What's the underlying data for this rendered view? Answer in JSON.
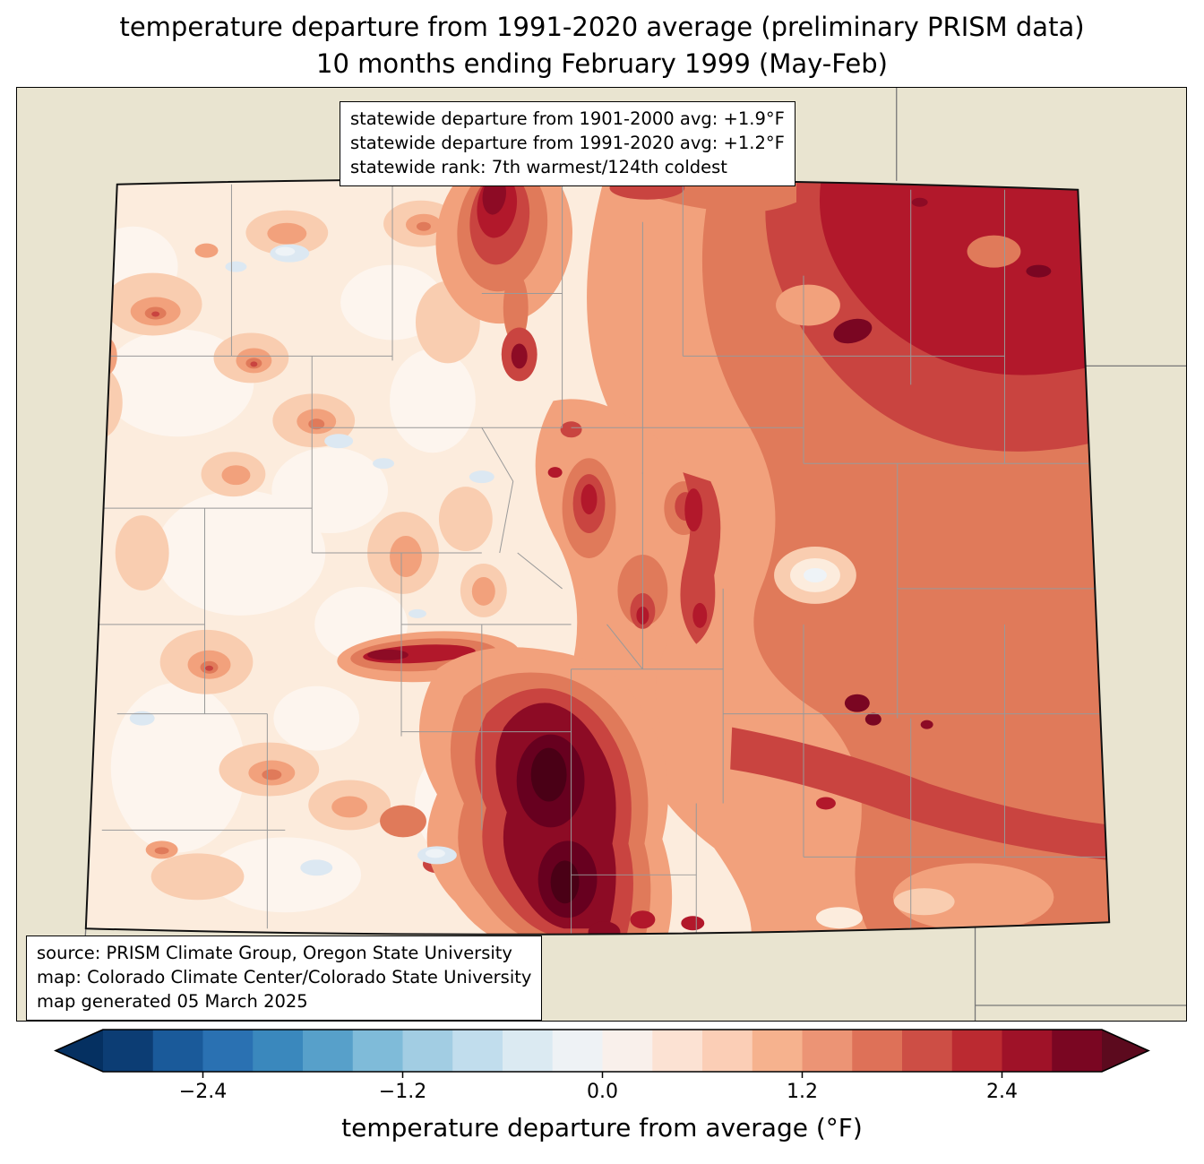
{
  "title": {
    "line1": "temperature departure from 1991-2020 average (preliminary PRISM data)",
    "line2": "10 months ending February 1999 (May-Feb)"
  },
  "stats_box": {
    "line1": "statewide departure from 1901-2000 avg: +1.9°F",
    "line2": "statewide departure from 1991-2020 avg: +1.2°F",
    "line3": "statewide rank: 7th warmest/124th coldest"
  },
  "source_box": {
    "line1": "source: PRISM Climate Group, Oregon State University",
    "line2": "map: Colorado Climate Center/Colorado State University",
    "line3": "map generated 05 March 2025"
  },
  "colorbar": {
    "label": "temperature departure from average (°F)",
    "ticks": [
      "−2.4",
      "−1.2",
      "0.0",
      "1.2",
      "2.4"
    ],
    "tick_values": [
      -2.4,
      -1.2,
      0.0,
      1.2,
      2.4
    ],
    "range": [
      -3.0,
      3.0
    ],
    "step": 0.3,
    "segment_colors": [
      "#0c3d74",
      "#1a5a9a",
      "#2a71b2",
      "#3a88bd",
      "#57a0ca",
      "#7fbbd9",
      "#a2cde3",
      "#c1dded",
      "#dbeaf2",
      "#eef2f5",
      "#f9f0eb",
      "#fce2d3",
      "#fbceb6",
      "#f6b28e",
      "#ec9475",
      "#de7158",
      "#cd4e45",
      "#bb2a31",
      "#9f1228",
      "#7a0622"
    ],
    "left_arrow_color": "#053061",
    "right_arrow_color": "#5c0a1e"
  },
  "map": {
    "region": "Colorado",
    "background_color": "#e9e4d0",
    "county_line_color": "#999999",
    "state_border_color": "#111111",
    "neighbor_line_color": "#777777"
  },
  "chart_data": {
    "type": "heatmap",
    "subtype": "choropleth-contour-map",
    "region": "Colorado",
    "variable": "temperature departure from average (°F)",
    "baseline": "1991-2020 average (preliminary PRISM data)",
    "period": "10 months ending February 1999 (May-Feb)",
    "statewide_departure_from_1901_2000_avg_F": 1.9,
    "statewide_departure_from_1991_2020_avg_F": 1.2,
    "statewide_rank": "7th warmest/124th coldest",
    "colorbar_range": [
      -3.0,
      3.0
    ],
    "colorbar_step": 0.3,
    "colorbar_ticks": [
      -2.4,
      -1.2,
      0.0,
      1.2,
      2.4
    ],
    "spatial_pattern": "Western Colorado mostly near 0 to +0.6; eastern plains +1.2 to +2.4; darkest positive anomalies over +2.7 in Sangre de Cristo / upper Rio Grande area (south-central) and far northeast"
  }
}
